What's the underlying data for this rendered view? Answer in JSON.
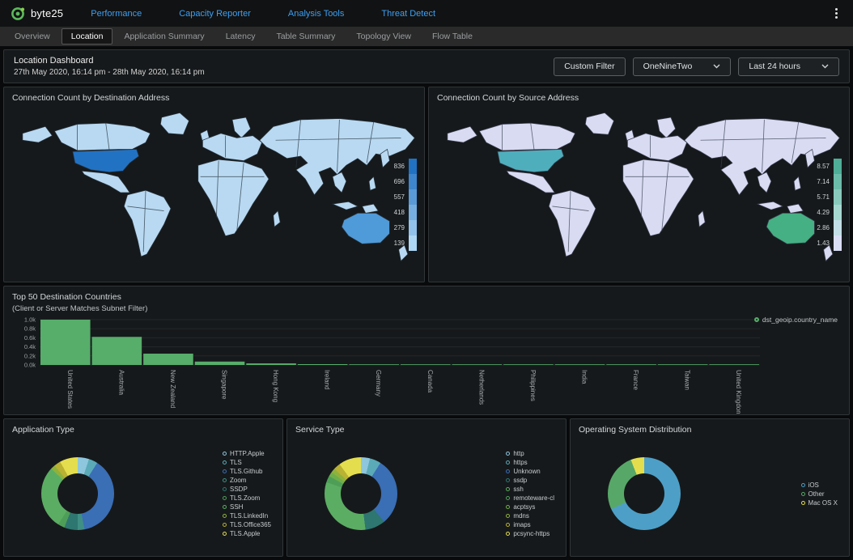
{
  "navbar": {
    "brand": "byte25",
    "items": [
      "Performance",
      "Capacity Reporter",
      "Analysis Tools",
      "Threat Detect"
    ]
  },
  "tabs": [
    "Overview",
    "Location",
    "Application Summary",
    "Latency",
    "Table Summary",
    "Topology View",
    "Flow Table"
  ],
  "active_tab": "Location",
  "header": {
    "title": "Location Dashboard",
    "date_range": "27th May 2020, 16:14 pm - 28th May 2020, 16:14 pm",
    "custom_filter": "Custom Filter",
    "site_select": "OneNineTwo",
    "time_select": "Last 24 hours"
  },
  "maps": {
    "destination": {
      "title": "Connection Count by Destination Address",
      "legend": [
        {
          "label": "836",
          "color": "#2272c3"
        },
        {
          "label": "696",
          "color": "#3e86cd"
        },
        {
          "label": "557",
          "color": "#5a9ad7"
        },
        {
          "label": "418",
          "color": "#76aee1"
        },
        {
          "label": "279",
          "color": "#92c2eb"
        },
        {
          "label": "139",
          "color": "#aed6f5"
        }
      ],
      "colors": {
        "base": "#b9d9f2",
        "us": "#2272c3",
        "australia": "#4f9ad9",
        "border": "#27343f"
      }
    },
    "source": {
      "title": "Connection Count by Source Address",
      "legend": [
        {
          "label": "8.57",
          "color": "#4fae97"
        },
        {
          "label": "7.14",
          "color": "#6cbcaa"
        },
        {
          "label": "5.71",
          "color": "#89cabd"
        },
        {
          "label": "4.29",
          "color": "#a6d8d0"
        },
        {
          "label": "2.86",
          "color": "#c3dee6"
        },
        {
          "label": "1.43",
          "color": "#d9def5"
        }
      ],
      "colors": {
        "base": "#d8dbf2",
        "us": "#4faebc",
        "australia": "#45b083",
        "border": "#3a3f52"
      }
    }
  },
  "chart_data": {
    "type": "bar",
    "title": "Top 50 Destination Countries",
    "subtitle": "(Client or Server Matches Subnet Filter)",
    "legend": "dst_geoip.country_name",
    "series_color": "#57ad6a",
    "categories": [
      "United States",
      "Australia",
      "New Zealand",
      "Singapore",
      "Hong Kong",
      "Ireland",
      "Germany",
      "Canada",
      "Netherlands",
      "Philippines",
      "India",
      "France",
      "Taiwan",
      "United Kingdom"
    ],
    "values": [
      1000,
      620,
      250,
      75,
      35,
      18,
      12,
      10,
      8,
      7,
      6,
      5,
      4,
      3
    ],
    "xlabel": "",
    "ylabel": "",
    "yticks": [
      "0.0k",
      "0.2k",
      "0.4k",
      "0.6k",
      "0.8k",
      "1.0k"
    ],
    "ylim": [
      0,
      1000
    ],
    "grid": true,
    "legend_position": "top-right"
  },
  "donuts": [
    {
      "title": "Application Type",
      "type": "pie",
      "items": [
        {
          "label": "HTTP.Apple",
          "value": 5,
          "color": "#8ec6dd"
        },
        {
          "label": "TLS",
          "value": 4,
          "color": "#5aaab8"
        },
        {
          "label": "TLS.Github",
          "value": 38,
          "color": "#3a6eb5"
        },
        {
          "label": "Zoom",
          "value": 3,
          "color": "#3f8f85"
        },
        {
          "label": "SSDP",
          "value": 6,
          "color": "#2e7670"
        },
        {
          "label": "TLS.Zoom",
          "value": 3,
          "color": "#4f9e58"
        },
        {
          "label": "SSH",
          "value": 28,
          "color": "#5bad63"
        },
        {
          "label": "TLS.LinkedIn",
          "value": 2,
          "color": "#8fb23c"
        },
        {
          "label": "TLS.Office365",
          "value": 3,
          "color": "#b9b232"
        },
        {
          "label": "TLS.Apple",
          "value": 8,
          "color": "#e4de4e"
        }
      ]
    },
    {
      "title": "Service Type",
      "type": "pie",
      "items": [
        {
          "label": "http",
          "value": 4,
          "color": "#8ec6dd"
        },
        {
          "label": "https",
          "value": 5,
          "color": "#5aaab8"
        },
        {
          "label": "Unknown",
          "value": 30,
          "color": "#3a6eb5"
        },
        {
          "label": "ssdp",
          "value": 9,
          "color": "#2e7670"
        },
        {
          "label": "ssh",
          "value": 32,
          "color": "#5bad63"
        },
        {
          "label": "remoteware-cl",
          "value": 3,
          "color": "#4f9e58"
        },
        {
          "label": "acptsys",
          "value": 2,
          "color": "#6faf4a"
        },
        {
          "label": "mdns",
          "value": 2,
          "color": "#8fb23c"
        },
        {
          "label": "imaps",
          "value": 3,
          "color": "#b9b232"
        },
        {
          "label": "pcsync-https",
          "value": 10,
          "color": "#e4de4e"
        }
      ]
    },
    {
      "title": "Operating System Distribution",
      "type": "pie",
      "items": [
        {
          "label": "iOS",
          "value": 68,
          "color": "#4d9fc7"
        },
        {
          "label": "Other",
          "value": 26,
          "color": "#57a868"
        },
        {
          "label": "Mac OS X",
          "value": 6,
          "color": "#e4de4e"
        }
      ]
    }
  ]
}
